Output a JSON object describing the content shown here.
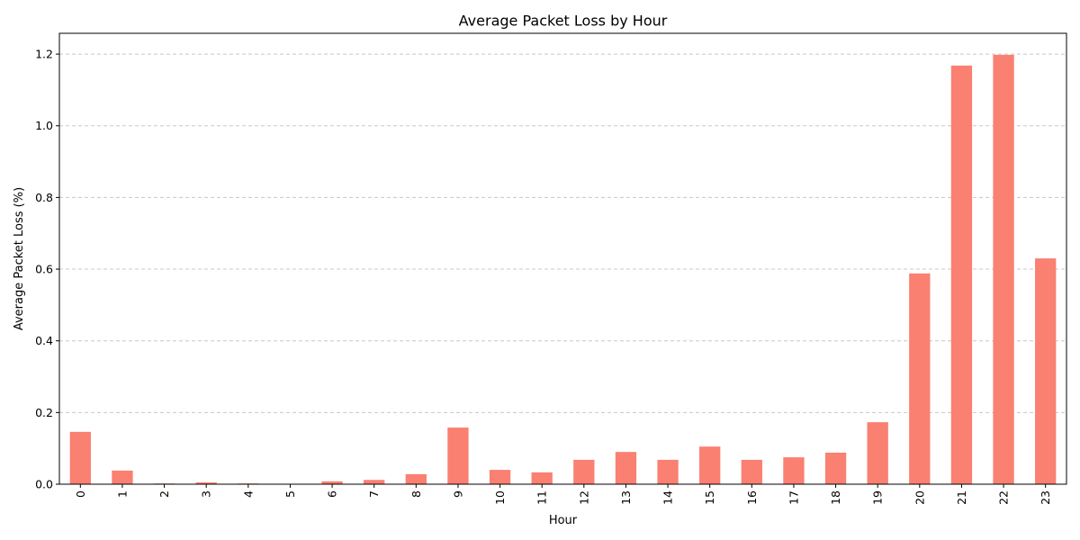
{
  "chart_data": {
    "type": "bar",
    "title": "Average Packet Loss by Hour",
    "xlabel": "Hour",
    "ylabel": "Average Packet Loss (%)",
    "categories": [
      "0",
      "1",
      "2",
      "3",
      "4",
      "5",
      "6",
      "7",
      "8",
      "9",
      "10",
      "11",
      "12",
      "13",
      "14",
      "15",
      "16",
      "17",
      "18",
      "19",
      "20",
      "21",
      "22",
      "23"
    ],
    "values": [
      0.146,
      0.038,
      0.002,
      0.005,
      0.002,
      0.0,
      0.008,
      0.012,
      0.028,
      0.158,
      0.04,
      0.033,
      0.068,
      0.09,
      0.068,
      0.105,
      0.068,
      0.075,
      0.088,
      0.173,
      0.588,
      1.168,
      1.198,
      0.63
    ],
    "ylim": [
      0,
      1.258
    ],
    "yticks": [
      0.0,
      0.2,
      0.4,
      0.6,
      0.8,
      1.0,
      1.2
    ],
    "ytick_labels": [
      "0.0",
      "0.2",
      "0.4",
      "0.6",
      "0.8",
      "1.0",
      "1.2"
    ],
    "grid": "y-dashed",
    "bar_color": "#fa8072",
    "grid_color": "#c8c8c8"
  }
}
